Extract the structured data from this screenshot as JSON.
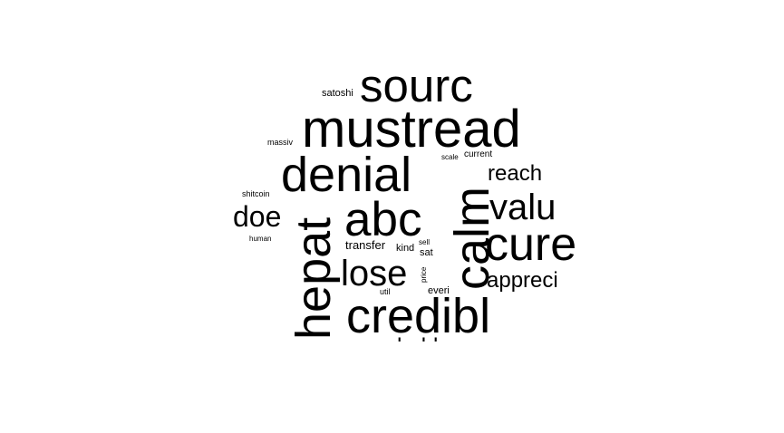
{
  "text_color": "#000000",
  "background_color": "#ffffff",
  "words": {
    "sourc": "sourc",
    "mustread": "mustread",
    "denial": "denial",
    "abc": "abc",
    "calm": "calm",
    "hepat": "hepat",
    "credibl": "credibl",
    "cure": "cure",
    "valu": "valu",
    "lose": "lose",
    "doe": "doe",
    "reach": "reach",
    "appreci": "appreci",
    "holder": "holder",
    "transfer": "transfer",
    "kind": "kind",
    "sat": "sat",
    "sell": "sell",
    "price": "price",
    "everi": "everi",
    "util": "util",
    "satoshi": "satoshi",
    "massiv": "massiv",
    "shitcoin": "shitcoin",
    "human": "human",
    "scale": "scale",
    "current": "current"
  }
}
